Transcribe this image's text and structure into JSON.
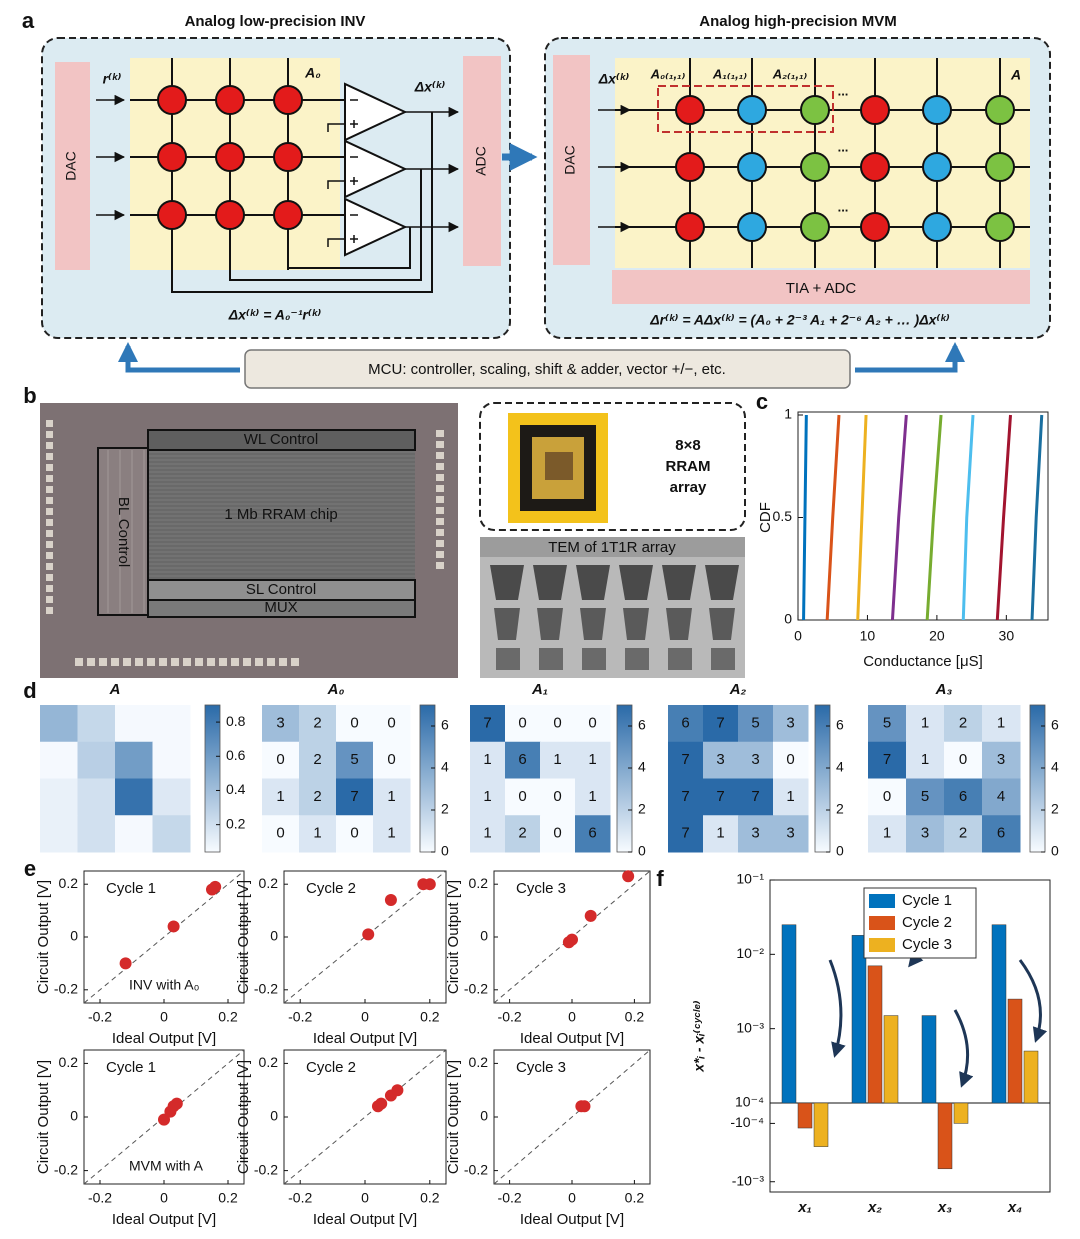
{
  "panel_labels": [
    "a",
    "b",
    "c",
    "d",
    "e",
    "f"
  ],
  "diagram": {
    "inv": {
      "title": "Analog low-precision INV",
      "dac": "DAC",
      "adc": "ADC",
      "input": "r⁽ᵏ⁾",
      "matrix": "A₀",
      "output": "Δx⁽ᵏ⁾",
      "equation": "Δx⁽ᵏ⁾ = A₀⁻¹r⁽ᵏ⁾"
    },
    "mvm": {
      "title": "Analog high-precision MVM",
      "dac": "DAC",
      "input": "Δx⁽ᵏ⁾",
      "cells": [
        "A₀₍₁,₁₎",
        "A₁₍₁,₁₎",
        "A₂₍₁,₁₎"
      ],
      "dots": "...",
      "matrix": "A",
      "readout": "TIA + ADC",
      "equation": "Δr⁽ᵏ⁾ = AΔx⁽ᵏ⁾ = (A₀ + 2⁻³ A₁ + 2⁻⁶ A₂ + … )Δx⁽ᵏ⁾"
    },
    "mcu": "MCU: controller, scaling, shift & adder, vector +/−, etc."
  },
  "photos": {
    "chip": {
      "wl": "WL Control",
      "bl": "BL Control",
      "core": "1 Mb RRAM chip",
      "sl": "SL Control",
      "mux": "MUX"
    },
    "package": [
      "8×8",
      "RRAM",
      "array"
    ],
    "tem": "TEM of 1T1R array"
  },
  "chart_data": [
    {
      "type": "line",
      "xlabel": "Conductance [μS]",
      "ylabel": "CDF",
      "xlim": [
        0,
        36
      ],
      "xticks": [
        0,
        10,
        20,
        30
      ],
      "ylim": [
        0,
        1
      ],
      "yticks": [
        0,
        0.5,
        1
      ],
      "series": [
        {
          "color": "#0072BD",
          "x": [
            0.8,
            1.0,
            1.2
          ],
          "values": [
            0,
            0.5,
            1
          ]
        },
        {
          "color": "#D95319",
          "x": [
            4.2,
            5.0,
            5.9
          ],
          "values": [
            0,
            0.5,
            1
          ]
        },
        {
          "color": "#EDB120",
          "x": [
            8.6,
            9.2,
            9.8
          ],
          "values": [
            0,
            0.5,
            1
          ]
        },
        {
          "color": "#7E2F8E",
          "x": [
            13.6,
            14.5,
            15.6
          ],
          "values": [
            0,
            0.5,
            1
          ]
        },
        {
          "color": "#77AC30",
          "x": [
            18.6,
            19.5,
            20.6
          ],
          "values": [
            0,
            0.5,
            1
          ]
        },
        {
          "color": "#4DBEEE",
          "x": [
            23.8,
            24.3,
            25.2
          ],
          "values": [
            0,
            0.5,
            1
          ]
        },
        {
          "color": "#A2142F",
          "x": [
            28.7,
            29.6,
            30.6
          ],
          "values": [
            0,
            0.5,
            1
          ]
        },
        {
          "color": "#1a6fa0",
          "x": [
            33.7,
            34.3,
            35.1
          ],
          "values": [
            0,
            0.5,
            1
          ]
        }
      ]
    },
    {
      "type": "heatmap",
      "title": "A",
      "show_values": false,
      "colormap": [
        "#f7fbff",
        "#2a6aa8"
      ],
      "clim": [
        0.04,
        0.9
      ],
      "cbar_ticks": [
        0.2,
        0.4,
        0.6,
        0.8
      ],
      "values": [
        [
          0.45,
          0.25,
          0.05,
          0.05
        ],
        [
          0.05,
          0.3,
          0.6,
          0.05
        ],
        [
          0.1,
          0.2,
          0.85,
          0.15
        ],
        [
          0.1,
          0.2,
          0.05,
          0.25
        ]
      ]
    },
    {
      "type": "heatmap",
      "title": "A₀",
      "show_values": true,
      "colormap": [
        "#f7fbff",
        "#2a6aa8"
      ],
      "clim": [
        0,
        7
      ],
      "cbar_ticks": [
        0,
        2,
        4,
        6
      ],
      "values": [
        [
          3,
          2,
          0,
          0
        ],
        [
          0,
          2,
          5,
          0
        ],
        [
          1,
          2,
          7,
          1
        ],
        [
          0,
          1,
          0,
          1
        ]
      ]
    },
    {
      "type": "heatmap",
      "title": "A₁",
      "show_values": true,
      "colormap": [
        "#f7fbff",
        "#2a6aa8"
      ],
      "clim": [
        0,
        7
      ],
      "cbar_ticks": [
        0,
        2,
        4,
        6
      ],
      "values": [
        [
          7,
          0,
          0,
          0
        ],
        [
          1,
          6,
          1,
          1
        ],
        [
          1,
          0,
          0,
          1
        ],
        [
          1,
          2,
          0,
          6
        ]
      ]
    },
    {
      "type": "heatmap",
      "title": "A₂",
      "show_values": true,
      "colormap": [
        "#f7fbff",
        "#2a6aa8"
      ],
      "clim": [
        0,
        7
      ],
      "cbar_ticks": [
        0,
        2,
        4,
        6
      ],
      "values": [
        [
          6,
          7,
          5,
          3
        ],
        [
          7,
          3,
          3,
          0
        ],
        [
          7,
          7,
          7,
          1
        ],
        [
          7,
          1,
          3,
          3
        ]
      ]
    },
    {
      "type": "heatmap",
      "title": "A₃",
      "show_values": true,
      "colormap": [
        "#f7fbff",
        "#2a6aa8"
      ],
      "clim": [
        0,
        7
      ],
      "cbar_ticks": [
        0,
        2,
        4,
        6
      ],
      "values": [
        [
          5,
          1,
          2,
          1
        ],
        [
          7,
          1,
          0,
          3
        ],
        [
          0,
          5,
          6,
          4
        ],
        [
          1,
          3,
          2,
          6
        ]
      ]
    },
    {
      "type": "scatter",
      "title": "Cycle 1",
      "annotation": "INV with A₀",
      "xlabel": "Ideal Output [V]",
      "ylabel": "Circuit Output [V]",
      "xlim": [
        -0.25,
        0.25
      ],
      "ylim": [
        -0.25,
        0.25
      ],
      "xticks": [
        -0.2,
        0,
        0.2
      ],
      "yticks": [
        -0.2,
        0,
        0.2
      ],
      "color": "#d42a2a",
      "diagonal": true,
      "x": [
        -0.12,
        0.03,
        0.15,
        0.16
      ],
      "values": [
        -0.1,
        0.04,
        0.18,
        0.19
      ]
    },
    {
      "type": "scatter",
      "title": "Cycle 2",
      "xlabel": "Ideal Output [V]",
      "ylabel": "Circuit Output [V]",
      "xlim": [
        -0.25,
        0.25
      ],
      "ylim": [
        -0.25,
        0.25
      ],
      "xticks": [
        -0.2,
        0,
        0.2
      ],
      "yticks": [
        -0.2,
        0,
        0.2
      ],
      "color": "#d42a2a",
      "diagonal": true,
      "x": [
        0.01,
        0.08,
        0.18,
        0.2
      ],
      "values": [
        0.01,
        0.14,
        0.2,
        0.2
      ]
    },
    {
      "type": "scatter",
      "title": "Cycle 3",
      "xlabel": "Ideal Output [V]",
      "ylabel": "Circuit Output [V]",
      "xlim": [
        -0.25,
        0.25
      ],
      "ylim": [
        -0.25,
        0.25
      ],
      "xticks": [
        -0.2,
        0,
        0.2
      ],
      "yticks": [
        -0.2,
        0,
        0.2
      ],
      "color": "#d42a2a",
      "diagonal": true,
      "x": [
        -0.01,
        0.0,
        0.06,
        0.18
      ],
      "values": [
        -0.02,
        -0.01,
        0.08,
        0.23
      ]
    },
    {
      "type": "scatter",
      "title": "Cycle 1",
      "annotation": "MVM with A",
      "xlabel": "Ideal Output [V]",
      "ylabel": "Circuit Output [V]",
      "xlim": [
        -0.25,
        0.25
      ],
      "ylim": [
        -0.25,
        0.25
      ],
      "xticks": [
        -0.2,
        0,
        0.2
      ],
      "yticks": [
        -0.2,
        0,
        0.2
      ],
      "color": "#d42a2a",
      "diagonal": true,
      "x": [
        0.0,
        0.02,
        0.03,
        0.04
      ],
      "values": [
        -0.01,
        0.02,
        0.04,
        0.05
      ]
    },
    {
      "type": "scatter",
      "title": "Cycle 2",
      "xlabel": "Ideal Output [V]",
      "ylabel": "Circuit Output [V]",
      "xlim": [
        -0.25,
        0.25
      ],
      "ylim": [
        -0.25,
        0.25
      ],
      "xticks": [
        -0.2,
        0,
        0.2
      ],
      "yticks": [
        -0.2,
        0,
        0.2
      ],
      "color": "#d42a2a",
      "diagonal": true,
      "x": [
        0.04,
        0.05,
        0.08,
        0.1
      ],
      "values": [
        0.04,
        0.05,
        0.08,
        0.1
      ]
    },
    {
      "type": "scatter",
      "title": "Cycle 3",
      "xlabel": "Ideal Output [V]",
      "ylabel": "Circuit Output [V]",
      "xlim": [
        -0.25,
        0.25
      ],
      "ylim": [
        -0.25,
        0.25
      ],
      "xticks": [
        -0.2,
        0,
        0.2
      ],
      "yticks": [
        -0.2,
        0,
        0.2
      ],
      "color": "#d42a2a",
      "diagonal": true,
      "x": [
        0.03,
        0.04
      ],
      "values": [
        0.04,
        0.04
      ]
    },
    {
      "type": "bar",
      "ylabel": "x*ᵢ - xᵢ⁽ᶜʸᶜˡᵉ⁾",
      "categories": [
        "x₁",
        "x₂",
        "x₃",
        "x₄"
      ],
      "yscale": "symlog",
      "linthresh": 0.0001,
      "ylim": [
        -0.0015,
        0.1
      ],
      "yticks": [
        {
          "value": 0.1,
          "label": "10⁻¹"
        },
        {
          "value": 0.01,
          "label": "10⁻²"
        },
        {
          "value": 0.001,
          "label": "10⁻³"
        },
        {
          "value": 0.0001,
          "label": "10⁻⁴"
        },
        {
          "value": -0.0001,
          "label": "-10⁻⁴"
        },
        {
          "value": -0.001,
          "label": "-10⁻³"
        }
      ],
      "legend": "upper center",
      "series": [
        {
          "name": "Cycle 1",
          "color": "#0072BD",
          "values": [
            0.025,
            0.018,
            0.0015,
            0.025
          ]
        },
        {
          "name": "Cycle 2",
          "color": "#D95319",
          "values": [
            -0.00012,
            0.007,
            -0.0006,
            0.0025
          ]
        },
        {
          "name": "Cycle 3",
          "color": "#EDB120",
          "values": [
            -0.00025,
            0.0015,
            -0.0001,
            0.0005
          ]
        }
      ]
    }
  ]
}
